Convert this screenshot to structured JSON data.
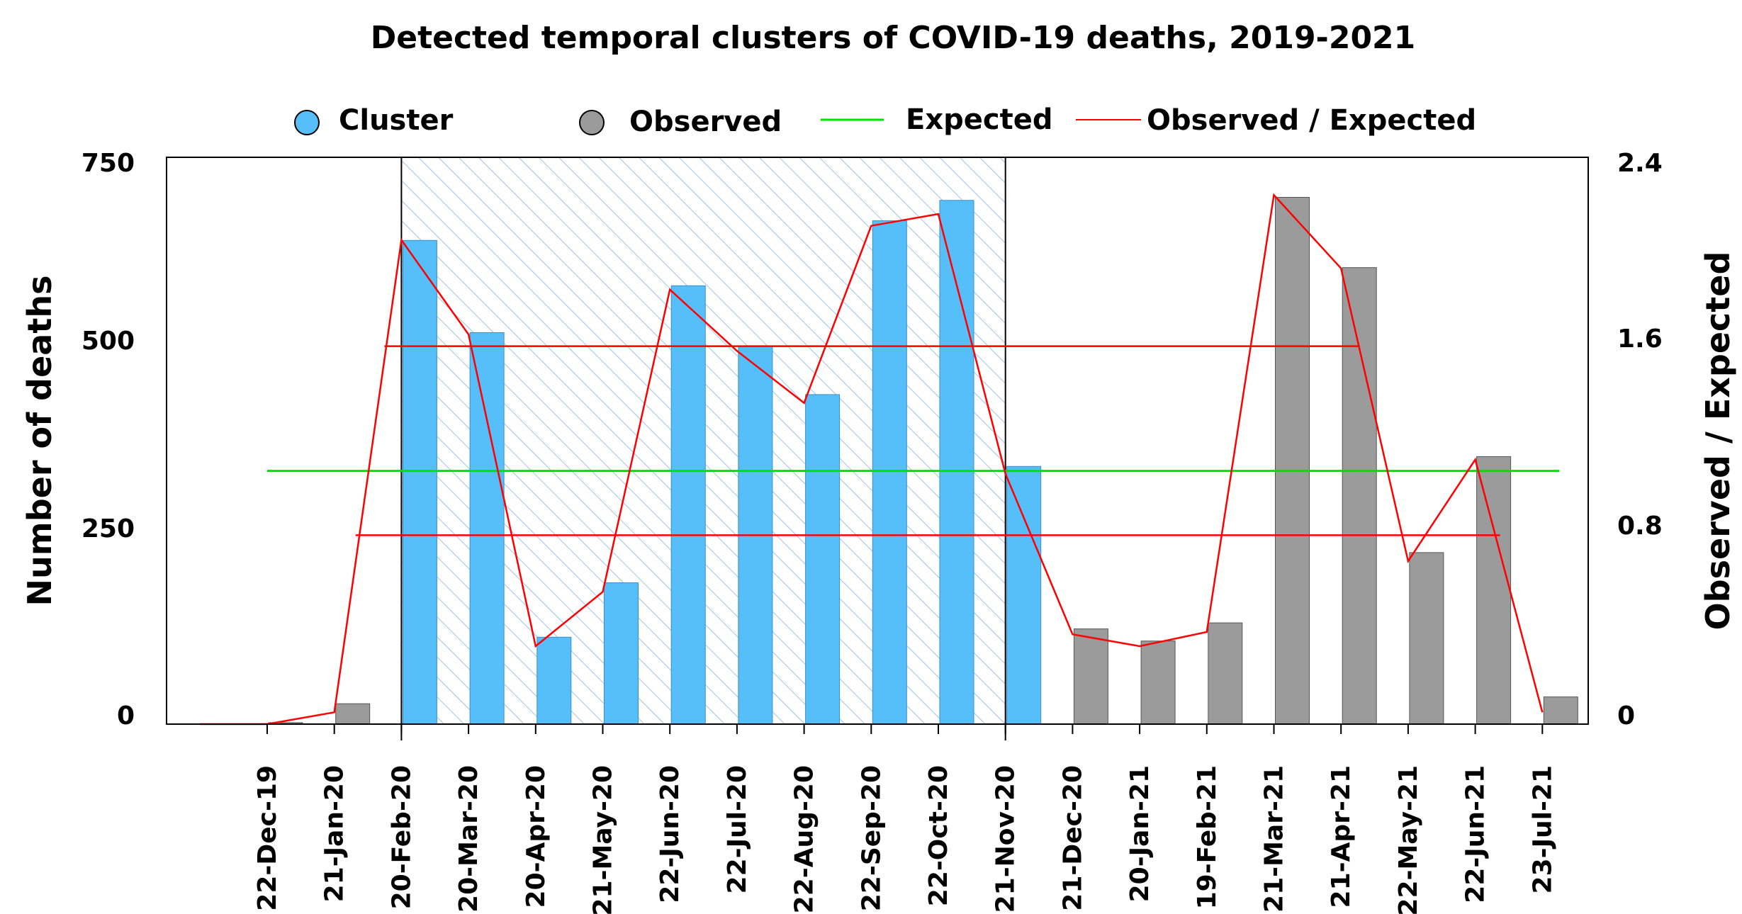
{
  "chart_data": {
    "type": "bar",
    "title": "Detected temporal clusters of COVID-19 deaths, 2019-2021",
    "ylabel": "Number of deaths",
    "y2label": "Observed / Expected",
    "ylim": [
      0,
      750
    ],
    "y2lim": [
      0,
      2.4
    ],
    "yticks": [
      "750",
      "500",
      "250",
      "0"
    ],
    "y2ticks": [
      "2.4",
      "1.6",
      "0.8",
      "0"
    ],
    "legend": {
      "cluster": "Cluster",
      "observed": "Observed",
      "expected": "Expected",
      "ratio": "Observed / Expected"
    },
    "categories": [
      "22-Dec-19",
      "21-Jan-20",
      "20-Feb-20",
      "20-Mar-20",
      "20-Apr-20",
      "21-May-20",
      "22-Jun-20",
      "22-Jul-20",
      "22-Aug-20",
      "22-Sep-20",
      "22-Oct-20",
      "21-Nov-20",
      "21-Dec-20",
      "20-Jan-21",
      "19-Feb-21",
      "21-Mar-21",
      "21-Apr-21",
      "22-May-21",
      "22-Jun-21",
      "23-Jul-21"
    ],
    "observed": [
      2,
      27,
      640,
      518,
      115,
      187,
      580,
      500,
      436,
      666,
      693,
      341,
      126,
      110,
      134,
      697,
      604,
      227,
      354,
      36
    ],
    "cluster_flags": [
      false,
      false,
      true,
      true,
      true,
      true,
      true,
      true,
      true,
      true,
      true,
      true,
      false,
      false,
      false,
      false,
      false,
      false,
      false,
      false
    ],
    "cluster_window": [
      "20-Feb-20",
      "21-Nov-20"
    ],
    "expected": 335,
    "ratio": [
      0,
      0.05,
      2.05,
      1.65,
      0.33,
      0.56,
      1.84,
      1.58,
      1.36,
      2.11,
      2.16,
      1.06,
      0.38,
      0.33,
      0.39,
      2.24,
      1.93,
      0.69,
      1.12,
      0.05
    ],
    "ratio_thresholds": [
      1.6,
      0.8
    ],
    "colors": {
      "cluster_bar": "#56bff9",
      "observed_bar": "#9b9b9b",
      "expected_line": "#00e000",
      "ratio_line": "#ff0000",
      "hatch": "#7fb0e0"
    }
  }
}
